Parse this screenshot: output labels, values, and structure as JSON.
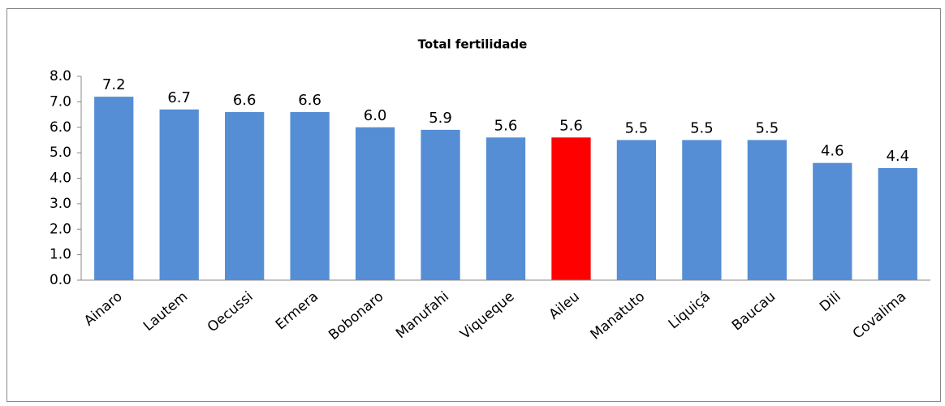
{
  "chart_data": {
    "type": "bar",
    "title": "Total fertilidade",
    "categories": [
      "Ainaro",
      "Lautem",
      "Oecussi",
      "Ermera",
      "Bobonaro",
      "Manufahi",
      "Viqueque",
      "Aileu",
      "Manatuto",
      "Liquiçá",
      "Baucau",
      "Dili",
      "Covalima"
    ],
    "values": [
      7.2,
      6.7,
      6.6,
      6.6,
      6.0,
      5.9,
      5.6,
      5.6,
      5.5,
      5.5,
      5.5,
      4.6,
      4.4
    ],
    "value_labels": [
      "7.2",
      "6.7",
      "6.6",
      "6.6",
      "6.0",
      "5.9",
      "5.6",
      "5.6",
      "5.5",
      "5.5",
      "5.5",
      "4.6",
      "4.4"
    ],
    "colors": [
      "#558ed5",
      "#558ed5",
      "#558ed5",
      "#558ed5",
      "#558ed5",
      "#558ed5",
      "#558ed5",
      "#ff0000",
      "#558ed5",
      "#558ed5",
      "#558ed5",
      "#558ed5",
      "#558ed5"
    ],
    "ylim": [
      0,
      8
    ],
    "yticks": [
      {
        "value": 0,
        "label": "0.0"
      },
      {
        "value": 1,
        "label": "1.0"
      },
      {
        "value": 2,
        "label": "2.0"
      },
      {
        "value": 3,
        "label": "3.0"
      },
      {
        "value": 4,
        "label": "4.0"
      },
      {
        "value": 5,
        "label": "5.0"
      },
      {
        "value": 6,
        "label": "6.0"
      },
      {
        "value": 7,
        "label": "7.0"
      },
      {
        "value": 8,
        "label": "8.0"
      }
    ],
    "grid": false
  }
}
